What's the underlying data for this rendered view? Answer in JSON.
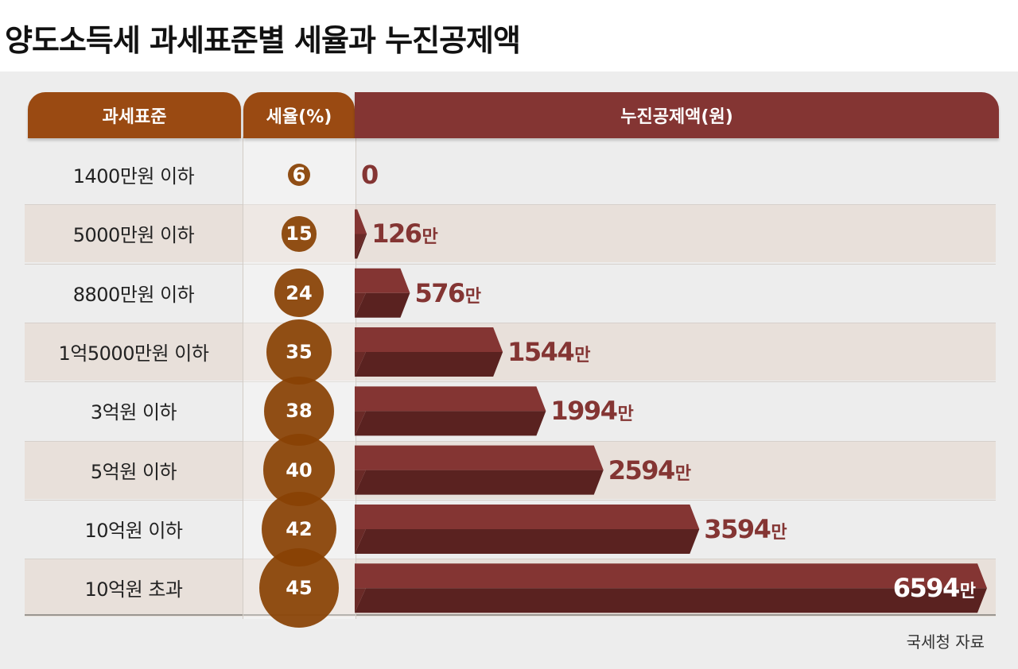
{
  "title": "양도소득세 과세표준별 세율과 누진공제액",
  "source": "국세청 자료",
  "colors": {
    "rate_header": "#9a4a12",
    "rate_circle": "#894204",
    "deduction_header": "#843533",
    "bar_top": "#843533",
    "bar_bottom": "#5a2220",
    "stripe": "#e8e0da",
    "panel": "#ededed"
  },
  "chart_data": {
    "type": "table",
    "columns": [
      "과세표준",
      "세율(%)",
      "누진공제액(원)"
    ],
    "categories": [
      "1400만원 이하",
      "5000만원 이하",
      "8800만원 이하",
      "1억5000만원 이하",
      "3억원 이하",
      "5억원 이하",
      "10억원 이하",
      "10억원 초과"
    ],
    "series": [
      {
        "name": "세율(%)",
        "values": [
          6,
          15,
          24,
          35,
          38,
          40,
          42,
          45
        ]
      },
      {
        "name": "누진공제액(원)",
        "values": [
          0,
          126,
          576,
          1544,
          1994,
          2594,
          3594,
          6594
        ]
      }
    ],
    "value_unit": "만",
    "value_labels": [
      "0",
      "126",
      "576",
      "1544",
      "1994",
      "2594",
      "3594",
      "6594"
    ]
  }
}
